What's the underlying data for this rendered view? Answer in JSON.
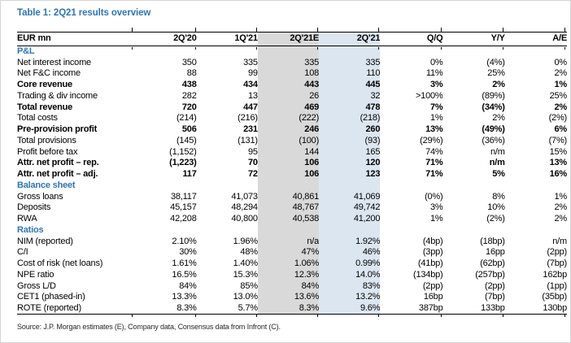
{
  "title": "Table 1: 2Q21 results overview",
  "source_note": "Source: J.P. Morgan estimates (E), Company data, Consensus data from Infront (C).",
  "colors": {
    "accent_blue": "#2f75b5",
    "estimate_column_highlight": "#d9d9d9",
    "actual_column_highlight": "#dce6f1",
    "rule_color": "#000000"
  },
  "table": {
    "unit_label": "EUR mn",
    "columns": [
      "EUR mn",
      "2Q'20",
      "1Q'21",
      "2Q'21E",
      "2Q'21",
      "Q/Q",
      "Y/Y",
      "A/E"
    ],
    "highlighted_columns": {
      "gray": "2Q'21E",
      "blue": "2Q'21"
    },
    "sections": [
      {
        "label": "P&L",
        "rows": [
          {
            "label": "Net interest income",
            "bold": false,
            "values": [
              "350",
              "335",
              "335",
              "335",
              "0%",
              "(4%)",
              "0%"
            ]
          },
          {
            "label": "Net F&C income",
            "bold": false,
            "values": [
              "88",
              "99",
              "108",
              "110",
              "11%",
              "25%",
              "2%"
            ]
          },
          {
            "label": "Core revenue",
            "bold": true,
            "values": [
              "438",
              "434",
              "443",
              "445",
              "3%",
              "2%",
              "1%"
            ]
          },
          {
            "label": "Trading & div income",
            "bold": false,
            "values": [
              "282",
              "13",
              "26",
              "32",
              ">100%",
              "(89%)",
              "25%"
            ]
          },
          {
            "label": "Total revenue",
            "bold": true,
            "values": [
              "720",
              "447",
              "469",
              "478",
              "7%",
              "(34%)",
              "2%"
            ]
          },
          {
            "label": "Total costs",
            "bold": false,
            "values": [
              "(214)",
              "(216)",
              "(222)",
              "(218)",
              "1%",
              "2%",
              "(2%)"
            ]
          },
          {
            "label": "Pre-provision profit",
            "bold": true,
            "values": [
              "506",
              "231",
              "246",
              "260",
              "13%",
              "(49%)",
              "6%"
            ]
          },
          {
            "label": "Total provisions",
            "bold": false,
            "values": [
              "(145)",
              "(131)",
              "(100)",
              "(93)",
              "(29%)",
              "(36%)",
              "(7%)"
            ]
          },
          {
            "label": "Profit before tax",
            "bold": false,
            "values": [
              "(1,152)",
              "95",
              "144",
              "165",
              "74%",
              "n/m",
              "15%"
            ]
          },
          {
            "label": "Attr. net profit – rep.",
            "bold": true,
            "values": [
              "(1,223)",
              "70",
              "106",
              "120",
              "71%",
              "n/m",
              "13%"
            ]
          },
          {
            "label": "Attr. net profit – adj.",
            "bold": true,
            "values": [
              "117",
              "72",
              "106",
              "123",
              "71%",
              "5%",
              "16%"
            ]
          }
        ]
      },
      {
        "label": "Balance sheet",
        "rows": [
          {
            "label": "Gross loans",
            "bold": false,
            "values": [
              "38,117",
              "41,073",
              "40,861",
              "41,069",
              "(0%)",
              "8%",
              "1%"
            ]
          },
          {
            "label": "Deposits",
            "bold": false,
            "values": [
              "45,157",
              "48,294",
              "48,767",
              "49,742",
              "3%",
              "10%",
              "2%"
            ]
          },
          {
            "label": "RWA",
            "bold": false,
            "values": [
              "42,208",
              "40,800",
              "40,538",
              "41,200",
              "1%",
              "(2%)",
              "2%"
            ]
          }
        ]
      },
      {
        "label": "Ratios",
        "rows": [
          {
            "label": "NIM (reported)",
            "bold": false,
            "values": [
              "2.10%",
              "1.96%",
              "n/a",
              "1.92%",
              "(4bp)",
              "(18bp)",
              "n/m"
            ]
          },
          {
            "label": "C/I",
            "bold": false,
            "values": [
              "30%",
              "48%",
              "47%",
              "46%",
              "(3pp)",
              "16pp",
              "(2pp)"
            ]
          },
          {
            "label": "Cost of risk (net loans)",
            "bold": false,
            "values": [
              "1.61%",
              "1.40%",
              "1.06%",
              "0.99%",
              "(41bp)",
              "(62bp)",
              "(7bp)"
            ]
          },
          {
            "label": "NPE ratio",
            "bold": false,
            "values": [
              "16.5%",
              "15.3%",
              "12.3%",
              "14.0%",
              "(134bp)",
              "(257bp)",
              "162bp"
            ]
          },
          {
            "label": "Gross L/D",
            "bold": false,
            "values": [
              "84%",
              "85%",
              "84%",
              "83%",
              "(2pp)",
              "(2pp)",
              "(1pp)"
            ]
          },
          {
            "label": "CET1 (phased-in)",
            "bold": false,
            "values": [
              "13.3%",
              "13.0%",
              "13.6%",
              "13.2%",
              "16bp",
              "(7bp)",
              "(35bp)"
            ]
          },
          {
            "label": "ROTE (reported)",
            "bold": false,
            "values": [
              "8.3%",
              "5.7%",
              "8.3%",
              "9.6%",
              "387bp",
              "133bp",
              "130bp"
            ]
          }
        ]
      }
    ]
  }
}
